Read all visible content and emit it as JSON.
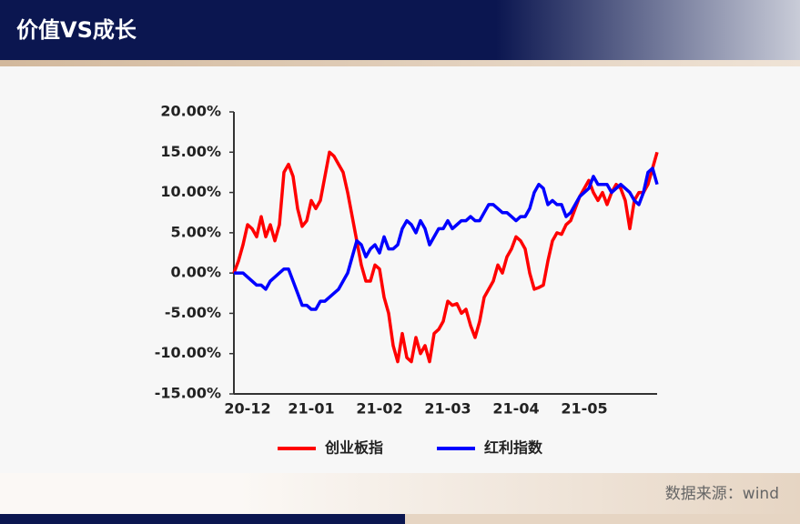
{
  "header": {
    "title": "价值VS成长"
  },
  "footer": {
    "source": "数据来源：wind"
  },
  "chart_data": {
    "type": "line",
    "categories": [
      null,
      null,
      null,
      "20-12",
      null,
      null,
      null,
      null,
      null,
      null,
      null,
      null,
      null,
      null,
      null,
      null,
      null,
      "21-01",
      null,
      null,
      null,
      null,
      null,
      null,
      null,
      null,
      null,
      null,
      null,
      null,
      null,
      null,
      "21-02",
      null,
      null,
      null,
      null,
      null,
      null,
      null,
      null,
      null,
      null,
      null,
      null,
      null,
      null,
      "21-03",
      null,
      null,
      null,
      null,
      null,
      null,
      null,
      null,
      null,
      null,
      null,
      null,
      null,
      null,
      "21-04",
      null,
      null,
      null,
      null,
      null,
      null,
      null,
      null,
      null,
      null,
      null,
      null,
      null,
      null,
      "21-05",
      null,
      null,
      null,
      null,
      null,
      null,
      null,
      null,
      null,
      null,
      null,
      null,
      null,
      null,
      null,
      null
    ],
    "series": [
      {
        "name": "创业板指",
        "color": "#ff0000",
        "values": [
          0,
          1.5,
          3.5,
          6,
          5.5,
          4.5,
          7,
          4.5,
          6,
          4,
          6,
          12.5,
          13.5,
          12,
          8,
          5.8,
          6.5,
          9,
          8,
          9,
          12,
          15,
          14.5,
          13.5,
          12.5,
          10,
          7,
          4,
          1,
          -1,
          -1,
          1,
          0.5,
          -3,
          -5,
          -9,
          -11,
          -7.5,
          -10.5,
          -11,
          -8,
          -10,
          -9,
          -11,
          -7.5,
          -7,
          -6,
          -3.5,
          -4,
          -3.8,
          -5,
          -4.5,
          -6.5,
          -8,
          -6,
          -3,
          -2,
          -1,
          1,
          0,
          2,
          3,
          4.5,
          4,
          3,
          0,
          -2,
          -1.8,
          -1.5,
          1.5,
          4,
          5,
          4.8,
          6,
          6.5,
          8,
          9.5,
          10.5,
          11.5,
          10,
          9,
          10,
          8.5,
          10,
          11,
          10.5,
          9,
          5.5,
          9,
          10,
          10,
          11,
          13,
          15
        ]
      },
      {
        "name": "红利指数",
        "color": "#0000ff",
        "values": [
          0,
          0,
          0,
          -0.5,
          -1,
          -1.5,
          -1.5,
          -2,
          -1,
          -0.5,
          0,
          0.5,
          0.5,
          -1,
          -2.5,
          -4,
          -4,
          -4.5,
          -4.5,
          -3.5,
          -3.5,
          -3,
          -2.5,
          -2,
          -1,
          0,
          2,
          4,
          3.5,
          2,
          3,
          3.5,
          2.5,
          4.5,
          3,
          3,
          3.5,
          5.5,
          6.5,
          6,
          5,
          6.5,
          5.5,
          3.5,
          4.5,
          5.5,
          5.5,
          6.5,
          5.5,
          6,
          6.5,
          6.5,
          7,
          6.5,
          6.5,
          7.5,
          8.5,
          8.5,
          8,
          7.5,
          7.5,
          7,
          6.5,
          7,
          7,
          8,
          10,
          11,
          10.5,
          8.5,
          9,
          8.5,
          8.5,
          7,
          7.5,
          8.5,
          9.5,
          10,
          10.5,
          12,
          11,
          11,
          11,
          10,
          10.5,
          11,
          10.5,
          10,
          9,
          8.5,
          10,
          12.5,
          13,
          11
        ]
      }
    ],
    "ylim": [
      -15,
      20
    ],
    "yticks": [
      {
        "value": -15,
        "label": "-15.00%"
      },
      {
        "value": -10,
        "label": "-10.00%"
      },
      {
        "value": -5,
        "label": "-5.00%"
      },
      {
        "value": 0,
        "label": "0.00%"
      },
      {
        "value": 5,
        "label": "5.00%"
      },
      {
        "value": 10,
        "label": "10.00%"
      },
      {
        "value": 15,
        "label": "15.00%"
      },
      {
        "value": 20,
        "label": "20.00%"
      }
    ],
    "grid": false,
    "legend": "bottom"
  }
}
